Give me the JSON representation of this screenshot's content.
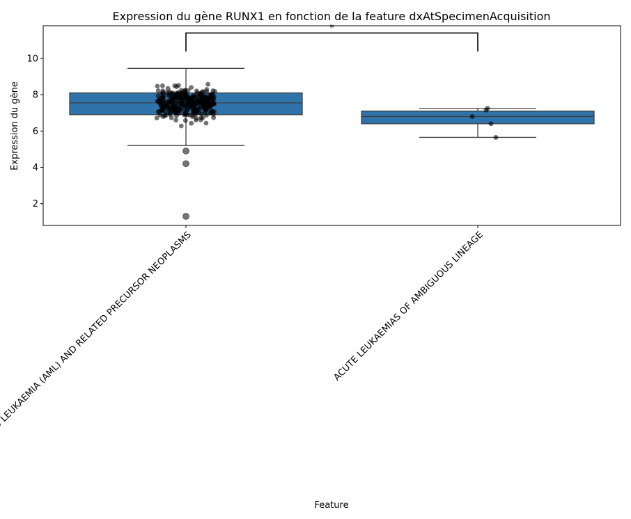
{
  "chart_data": {
    "type": "box",
    "title": "Expression du gène RUNX1 en fonction de la feature dxAtSpecimenAcquisition",
    "xlabel": "Feature",
    "ylabel": "Expression du gène",
    "ylim": [
      0.8,
      11.8
    ],
    "yticks": [
      2,
      4,
      6,
      8,
      10
    ],
    "categories": [
      "ACUTE MYELOID LEUKAEMIA (AML) AND RELATED PRECURSOR NEOPLASMS",
      "ACUTE LEUKAEMIAS OF AMBIGUOUS LINEAGE"
    ],
    "boxes": [
      {
        "category": "ACUTE MYELOID LEUKAEMIA (AML) AND RELATED PRECURSOR NEOPLASMS",
        "whisker_low": 5.2,
        "q1": 6.9,
        "median": 7.55,
        "q3": 8.1,
        "whisker_high": 9.45,
        "outliers": [
          4.9,
          4.2,
          1.3
        ]
      },
      {
        "category": "ACUTE LEUKAEMIAS OF AMBIGUOUS LINEAGE",
        "whisker_low": 5.65,
        "q1": 6.4,
        "median": 6.8,
        "q3": 7.1,
        "whisker_high": 7.25,
        "outliers": []
      }
    ],
    "points_group2": [
      7.25,
      7.15,
      6.8,
      6.4,
      5.65
    ],
    "points_group1_n": 330,
    "significance": {
      "from": 0,
      "to": 1,
      "label": "*",
      "y": 11.4
    },
    "box_color": "#2f73ab",
    "point_color": "#000000",
    "grid": false
  }
}
